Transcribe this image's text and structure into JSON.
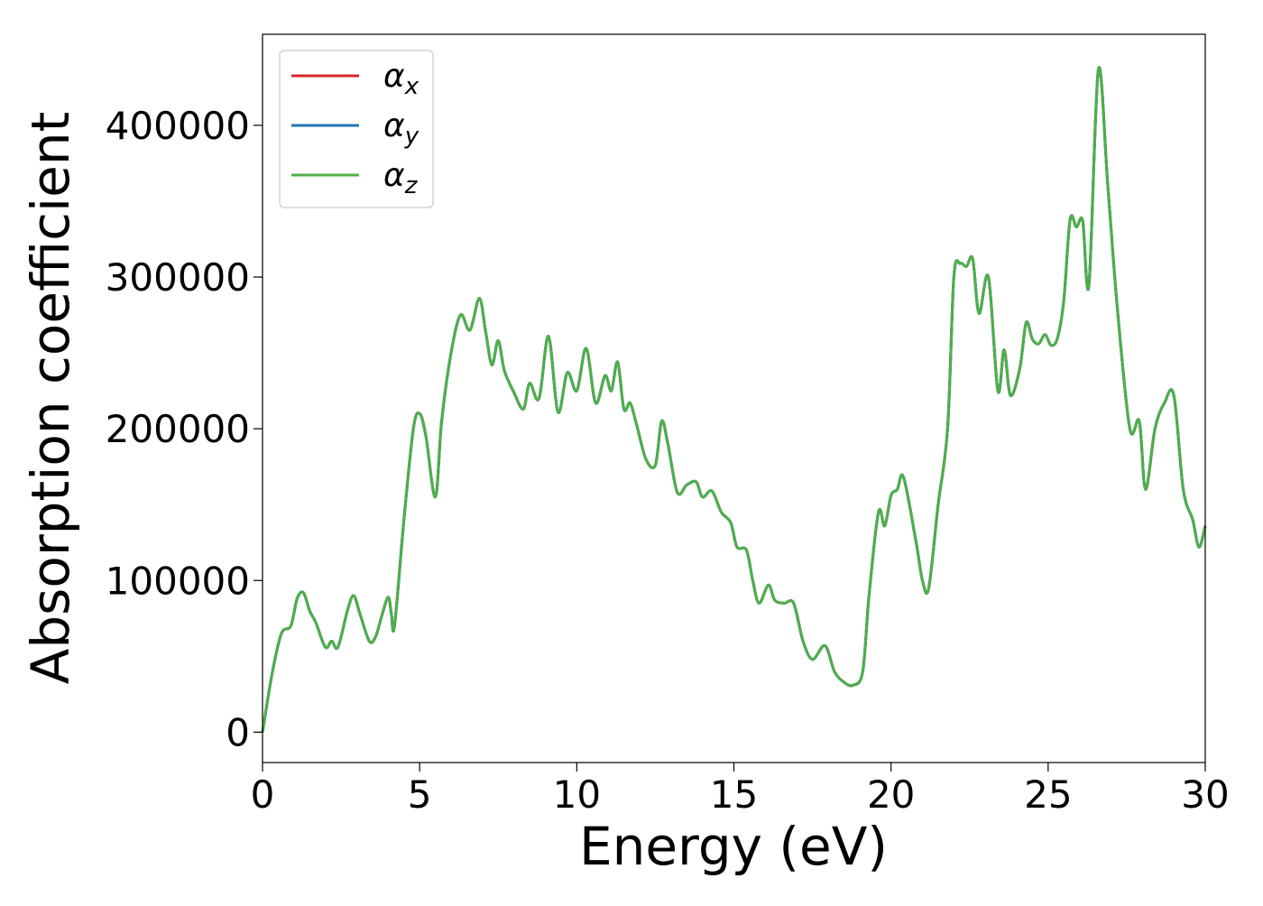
{
  "chart_data": {
    "type": "line",
    "xlabel": "Energy (eV)",
    "ylabel": "Absorption coefficient",
    "xlim": [
      0,
      30
    ],
    "ylim": [
      -20000,
      460000
    ],
    "xticks": [
      0,
      5,
      10,
      15,
      20,
      25,
      30
    ],
    "xtick_labels": [
      "0",
      "5",
      "10",
      "15",
      "20",
      "25",
      "30"
    ],
    "yticks": [
      0,
      100000,
      200000,
      300000,
      400000
    ],
    "ytick_labels": [
      "0",
      "100000",
      "200000",
      "300000",
      "400000"
    ],
    "grid": false,
    "legend_position": "top-left",
    "series": [
      {
        "name": "αx",
        "base": "α",
        "sub": "x",
        "color": "#d62728"
      },
      {
        "name": "αy",
        "base": "α",
        "sub": "y",
        "color": "#1f77b4"
      },
      {
        "name": "αz",
        "base": "α",
        "sub": "z",
        "color": "#4daf4a"
      }
    ],
    "x": [
      0,
      0.3,
      0.6,
      0.9,
      1.1,
      1.3,
      1.5,
      1.7,
      2.0,
      2.2,
      2.4,
      2.7,
      2.9,
      3.1,
      3.4,
      3.6,
      3.8,
      4.0,
      4.1,
      4.2,
      4.5,
      4.8,
      5.0,
      5.2,
      5.5,
      5.7,
      6.0,
      6.3,
      6.6,
      6.9,
      7.1,
      7.3,
      7.5,
      7.7,
      8.0,
      8.3,
      8.5,
      8.8,
      9.1,
      9.4,
      9.7,
      10.0,
      10.3,
      10.6,
      10.9,
      11.1,
      11.3,
      11.5,
      11.7,
      11.9,
      12.2,
      12.5,
      12.7,
      12.9,
      13.2,
      13.5,
      13.8,
      14.0,
      14.3,
      14.6,
      14.9,
      15.1,
      15.4,
      15.6,
      15.8,
      16.1,
      16.3,
      16.6,
      16.9,
      17.2,
      17.5,
      17.9,
      18.2,
      18.5,
      18.8,
      19.1,
      19.3,
      19.6,
      19.8,
      20.0,
      20.2,
      20.4,
      20.8,
      21.0,
      21.2,
      21.5,
      21.8,
      22.0,
      22.2,
      22.4,
      22.6,
      22.8,
      23.1,
      23.4,
      23.6,
      23.8,
      24.1,
      24.3,
      24.5,
      24.7,
      24.9,
      25.1,
      25.3,
      25.5,
      25.7,
      25.9,
      26.1,
      26.3,
      26.6,
      26.9,
      27.2,
      27.6,
      27.9,
      28.1,
      28.4,
      28.7,
      29.0,
      29.3,
      29.6,
      29.8,
      30.0
    ],
    "y": [
      0,
      38000,
      65000,
      70000,
      88000,
      92000,
      80000,
      72000,
      56000,
      60000,
      56000,
      80000,
      90000,
      78000,
      60000,
      63000,
      77000,
      89000,
      78000,
      70000,
      140000,
      200000,
      210000,
      195000,
      155000,
      205000,
      250000,
      275000,
      265000,
      286000,
      264000,
      242000,
      258000,
      238000,
      224000,
      213000,
      230000,
      220000,
      261000,
      211000,
      237000,
      225000,
      253000,
      217000,
      235000,
      225000,
      244000,
      213000,
      217000,
      203000,
      180000,
      176000,
      205000,
      190000,
      158000,
      163000,
      165000,
      155000,
      159000,
      145000,
      138000,
      122000,
      120000,
      100000,
      85000,
      97000,
      87000,
      85000,
      85000,
      60000,
      48000,
      57000,
      40000,
      33000,
      31000,
      40000,
      90000,
      145000,
      136000,
      156000,
      160000,
      168000,
      125000,
      100000,
      95000,
      150000,
      200000,
      300000,
      309000,
      307000,
      312000,
      276000,
      300000,
      225000,
      252000,
      222000,
      240000,
      270000,
      259000,
      256000,
      262000,
      255000,
      260000,
      285000,
      338000,
      333000,
      337000,
      295000,
      437000,
      360000,
      280000,
      200000,
      205000,
      160000,
      200000,
      217000,
      222000,
      160000,
      140000,
      122000,
      136000
    ]
  }
}
